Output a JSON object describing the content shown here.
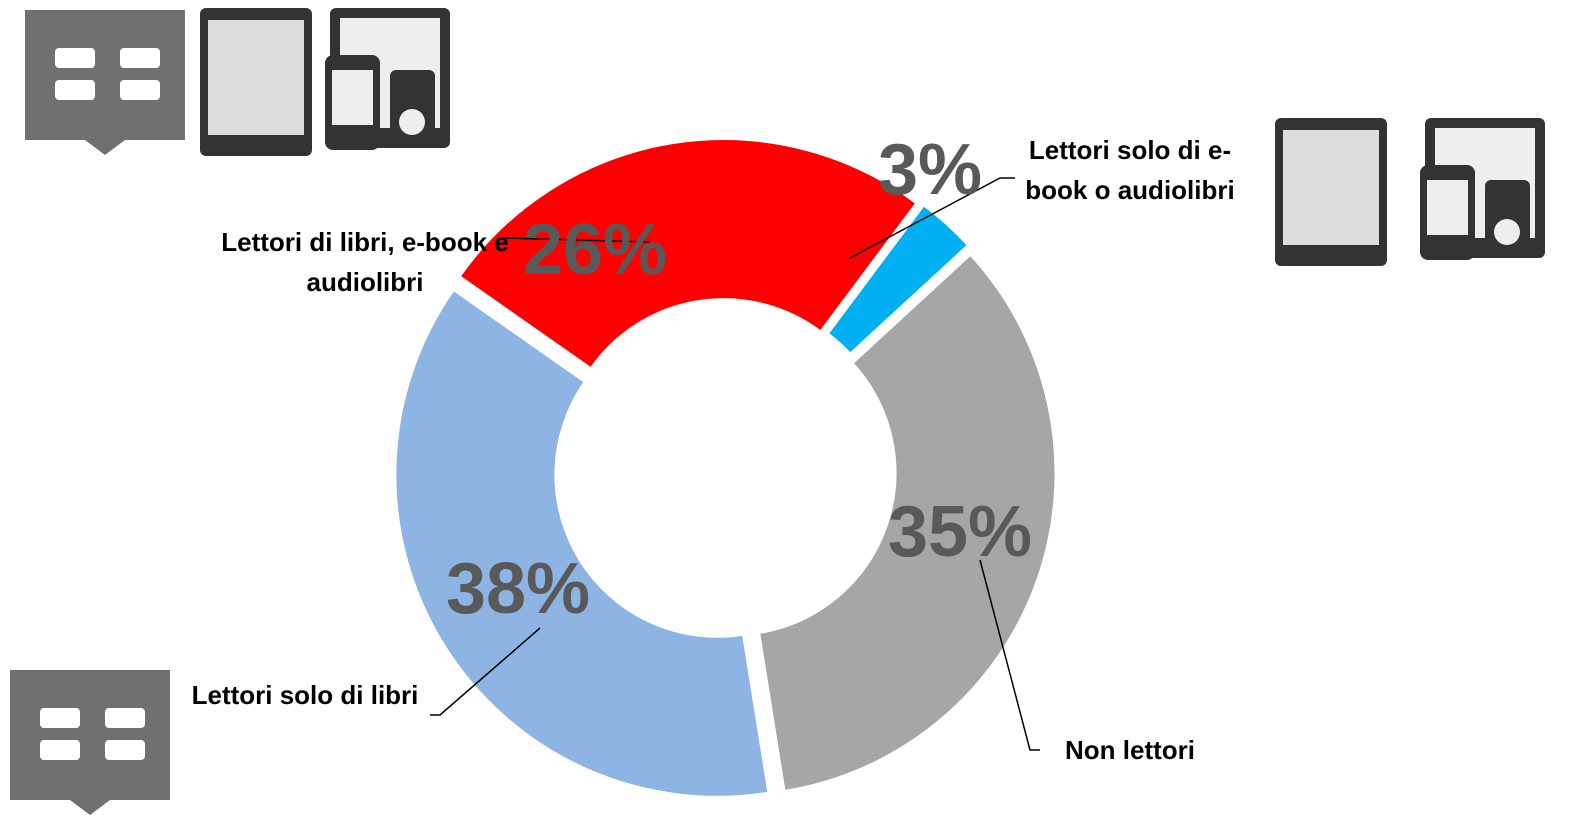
{
  "chart_data": {
    "type": "pie",
    "donut": true,
    "categories": [
      "Lettori di libri, e-book e audiolibri",
      "Lettori solo di e-book o audiolibri",
      "Non lettori",
      "Lettori solo di libri"
    ],
    "values": [
      26,
      3,
      35,
      38
    ],
    "value_labels": [
      "26%",
      "3%",
      "35%",
      "38%"
    ],
    "colors": [
      "#ff0000",
      "#00b0f0",
      "#a6a6a6",
      "#8eb4e3"
    ]
  }
}
